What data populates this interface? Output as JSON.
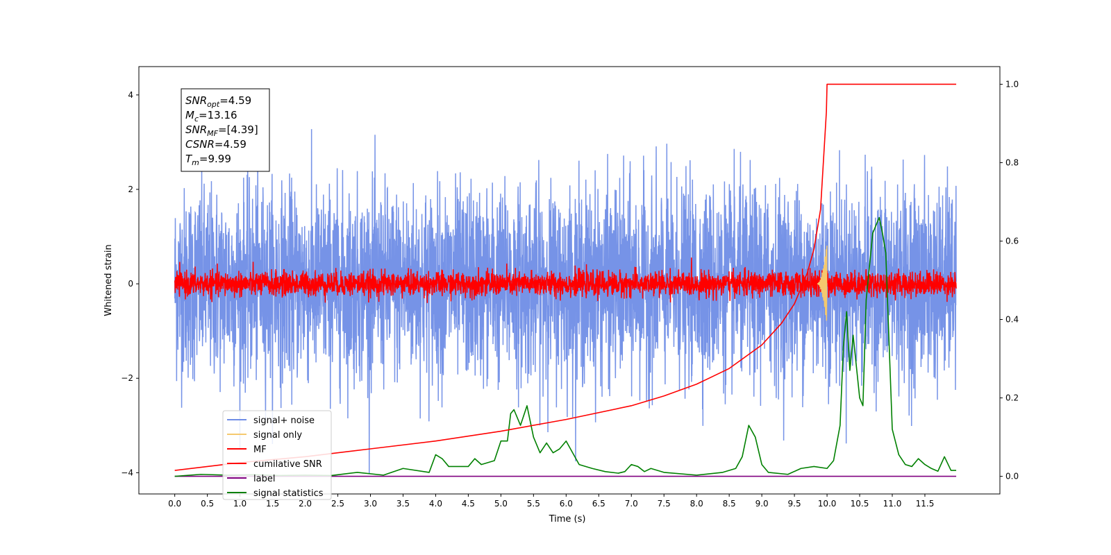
{
  "chart_data": {
    "type": "line",
    "xlabel": "Time (s)",
    "ylabel": "Whitened strain",
    "xlim": [
      -0.55,
      12.65
    ],
    "ylim": [
      -4.45,
      4.6
    ],
    "y2lim": [
      -0.045,
      1.045
    ],
    "x_ticks": [
      0.0,
      0.5,
      1.0,
      1.5,
      2.0,
      2.5,
      3.0,
      3.5,
      4.0,
      4.5,
      5.0,
      5.5,
      6.0,
      6.5,
      7.0,
      7.5,
      8.0,
      8.5,
      9.0,
      9.5,
      10.0,
      10.5,
      11.0,
      11.5
    ],
    "x_tick_labels": [
      "0.0",
      "0.5",
      "1.0",
      "1.5",
      "2.0",
      "2.5",
      "3.0",
      "3.5",
      "4.0",
      "4.5",
      "5.0",
      "5.5",
      "6.0",
      "6.5",
      "7.0",
      "7.5",
      "8.0",
      "8.5",
      "9.0",
      "9.5",
      "10.0",
      "10.5",
      "11.0",
      "11.5"
    ],
    "y_ticks": [
      -4,
      -2,
      0,
      2,
      4
    ],
    "y_tick_labels": [
      "−4",
      "−2",
      "0",
      "2",
      "4"
    ],
    "y2_ticks": [
      0.0,
      0.2,
      0.4,
      0.6,
      0.8,
      1.0
    ],
    "y2_tick_labels": [
      "0.0",
      "0.2",
      "0.4",
      "0.6",
      "0.8",
      "1.0"
    ],
    "annotation": {
      "lines": [
        {
          "base": "SNR",
          "sub": "opt",
          "value": "=4.59"
        },
        {
          "base": "M",
          "sub": "c",
          "value": "=13.16"
        },
        {
          "base": "SNR",
          "sub": "MF",
          "value": "=[4.39]"
        },
        {
          "base": "CSNR",
          "sub": "",
          "value": "=4.59"
        },
        {
          "base": "T",
          "sub": "m",
          "value": "=9.99"
        }
      ]
    },
    "legend": {
      "placement": "lower-left",
      "entries": [
        {
          "label": "signal+ noise",
          "color": "#6f8de6"
        },
        {
          "label": "signal only",
          "color": "#f5c96e"
        },
        {
          "label": "MF",
          "color": "#ff0000"
        },
        {
          "label": "cumilative SNR",
          "color": "#ff0000"
        },
        {
          "label": "label",
          "color": "#800080"
        },
        {
          "label": "signal statistics",
          "color": "#008000"
        }
      ]
    },
    "series": [
      {
        "name": "signal+ noise",
        "axis": "left",
        "color": "#6f8de6",
        "description": "whitened noise, x 0 to 11.98 s, amplitude roughly -4.1 to 4.2",
        "x_range": [
          0,
          11.98
        ],
        "std": 1.0
      },
      {
        "name": "signal only",
        "axis": "left",
        "color": "#f5c96e",
        "description": "chirp near merger",
        "x_range": [
          9.85,
          10.0
        ],
        "peak": 0.92
      },
      {
        "name": "MF",
        "axis": "left",
        "color": "#ff0000",
        "x_range": [
          0,
          11.98
        ],
        "std": 0.13
      },
      {
        "name": "cumilative SNR",
        "axis": "right",
        "color": "#ff0000",
        "x": [
          0.0,
          1.0,
          2.0,
          3.0,
          4.0,
          5.0,
          6.0,
          7.0,
          7.5,
          8.0,
          8.5,
          9.0,
          9.3,
          9.5,
          9.7,
          9.8,
          9.9,
          9.99,
          10.0,
          11.98
        ],
        "values": [
          0.015,
          0.035,
          0.05,
          0.07,
          0.09,
          0.115,
          0.145,
          0.18,
          0.205,
          0.235,
          0.275,
          0.335,
          0.39,
          0.44,
          0.52,
          0.58,
          0.68,
          0.93,
          1.0,
          1.0
        ]
      },
      {
        "name": "label",
        "axis": "right",
        "color": "#800080",
        "x": [
          0.0,
          11.98
        ],
        "values": [
          0.0,
          0.0
        ]
      },
      {
        "name": "signal statistics",
        "axis": "right",
        "color": "#008000",
        "x": [
          0.0,
          0.4,
          0.8,
          1.2,
          1.6,
          2.0,
          2.4,
          2.8,
          3.2,
          3.5,
          3.9,
          4.0,
          4.1,
          4.2,
          4.5,
          4.6,
          4.7,
          4.9,
          5.0,
          5.1,
          5.15,
          5.2,
          5.3,
          5.4,
          5.5,
          5.6,
          5.7,
          5.8,
          5.9,
          6.0,
          6.2,
          6.4,
          6.6,
          6.8,
          6.9,
          7.0,
          7.1,
          7.2,
          7.3,
          7.5,
          8.0,
          8.4,
          8.6,
          8.7,
          8.8,
          8.9,
          9.0,
          9.1,
          9.4,
          9.6,
          9.8,
          10.0,
          10.1,
          10.2,
          10.25,
          10.3,
          10.35,
          10.4,
          10.5,
          10.55,
          10.6,
          10.7,
          10.8,
          10.85,
          10.9,
          11.0,
          11.1,
          11.2,
          11.3,
          11.4,
          11.5,
          11.6,
          11.7,
          11.8,
          11.9,
          11.98
        ],
        "values": [
          0.0,
          0.005,
          0.003,
          0.004,
          0.002,
          0.003,
          0.002,
          0.01,
          0.003,
          0.02,
          0.01,
          0.055,
          0.045,
          0.025,
          0.025,
          0.045,
          0.03,
          0.04,
          0.09,
          0.09,
          0.16,
          0.17,
          0.13,
          0.18,
          0.1,
          0.06,
          0.085,
          0.06,
          0.07,
          0.09,
          0.03,
          0.02,
          0.012,
          0.008,
          0.012,
          0.03,
          0.025,
          0.012,
          0.02,
          0.01,
          0.003,
          0.01,
          0.02,
          0.05,
          0.13,
          0.1,
          0.03,
          0.01,
          0.005,
          0.02,
          0.025,
          0.02,
          0.04,
          0.13,
          0.33,
          0.42,
          0.27,
          0.36,
          0.2,
          0.18,
          0.45,
          0.62,
          0.66,
          0.62,
          0.57,
          0.12,
          0.055,
          0.03,
          0.025,
          0.045,
          0.03,
          0.02,
          0.013,
          0.05,
          0.015,
          0.015
        ]
      }
    ]
  }
}
